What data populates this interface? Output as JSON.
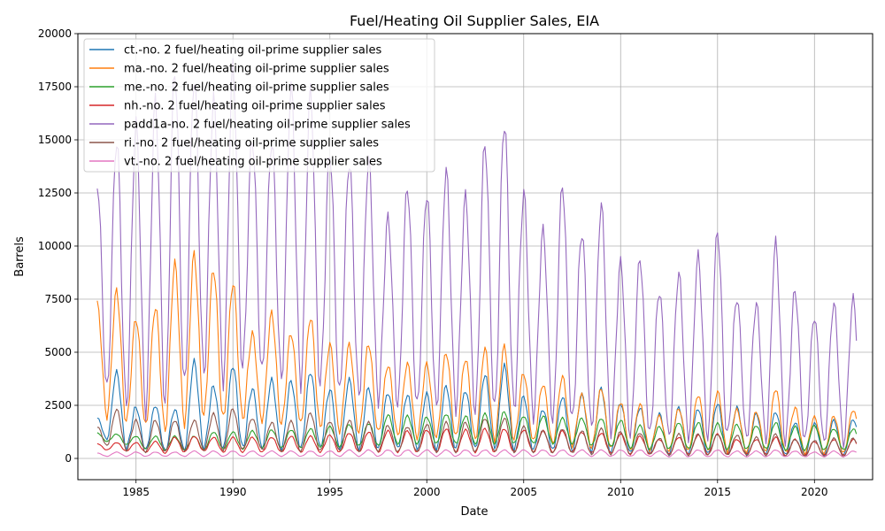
{
  "chart_data": {
    "type": "line",
    "title": "Fuel/Heating Oil Supplier Sales, EIA",
    "xlabel": "Date",
    "ylabel": "Barrels",
    "xlim": [
      1982.0,
      2023.0
    ],
    "ylim": [
      -1000,
      20000
    ],
    "grid": true,
    "legend_position": "top-left",
    "x_ticks": [
      1985,
      1990,
      1995,
      2000,
      2005,
      2010,
      2015,
      2020
    ],
    "y_ticks": [
      0,
      2500,
      5000,
      7500,
      10000,
      12500,
      15000,
      17500,
      20000
    ],
    "x_tick_labels": [
      "1985",
      "1990",
      "1995",
      "2000",
      "2005",
      "2010",
      "2015",
      "2020"
    ],
    "y_tick_labels": [
      "0",
      "2500",
      "5000",
      "7500",
      "10000",
      "12500",
      "15000",
      "17500",
      "20000"
    ],
    "x_years": [
      1983,
      1984,
      1985,
      1986,
      1987,
      1988,
      1989,
      1990,
      1991,
      1992,
      1993,
      1994,
      1995,
      1996,
      1997,
      1998,
      1999,
      2000,
      2001,
      2002,
      2003,
      2004,
      2005,
      2006,
      2007,
      2008,
      2009,
      2010,
      2011,
      2012,
      2013,
      2014,
      2015,
      2016,
      2017,
      2018,
      2019,
      2020,
      2021,
      2022
    ],
    "series": [
      {
        "name": "ct.-no. 2 fuel/heating oil-prime supplier sales",
        "color": "#1f77b4",
        "winter_peaks": [
          1900,
          4050,
          2400,
          2500,
          2300,
          4550,
          3400,
          4400,
          3300,
          3700,
          3650,
          4100,
          3250,
          3700,
          3300,
          3100,
          3000,
          3050,
          3400,
          3200,
          3950,
          4350,
          2900,
          2300,
          2900,
          3000,
          3300,
          2600,
          2400,
          2100,
          2400,
          2350,
          2600,
          2400,
          2100,
          2200,
          1700,
          1650,
          1800,
          1850
        ],
        "summer_lows": [
          900,
          500,
          400,
          350,
          400,
          500,
          450,
          500,
          500,
          450,
          450,
          500,
          450,
          450,
          450,
          450,
          450,
          450,
          450,
          450,
          500,
          450,
          400,
          400,
          350,
          350,
          250,
          250,
          250,
          200,
          200,
          200,
          200,
          200,
          200,
          150,
          150,
          150,
          150,
          150
        ]
      },
      {
        "name": "ma.-no. 2 fuel/heating oil-prime supplier sales",
        "color": "#ff7f0e",
        "winter_peaks": [
          7250,
          7900,
          6600,
          7150,
          9150,
          9600,
          8950,
          8300,
          5900,
          6850,
          5900,
          6650,
          5350,
          5350,
          5400,
          4400,
          4450,
          4450,
          5000,
          4700,
          5150,
          5250,
          4000,
          3500,
          3850,
          3000,
          3300,
          2650,
          2550,
          2000,
          2350,
          3000,
          3150,
          2300,
          2200,
          3300,
          2400,
          1950,
          2000,
          2300
        ],
        "summer_lows": [
          2000,
          1700,
          1500,
          1300,
          1700,
          2000,
          1800,
          1900,
          1800,
          1600,
          1600,
          1500,
          1300,
          1200,
          1200,
          1100,
          1000,
          1000,
          1000,
          900,
          900,
          900,
          800,
          700,
          600,
          500,
          450,
          400,
          400,
          350,
          350,
          350,
          350,
          300,
          300,
          300,
          250,
          250,
          250,
          250
        ]
      },
      {
        "name": "me.-no. 2 fuel/heating oil-prime supplier sales",
        "color": "#2ca02c",
        "winter_peaks": [
          1200,
          1150,
          1050,
          1050,
          1050,
          1050,
          1250,
          1250,
          1300,
          1350,
          1350,
          1400,
          1500,
          1600,
          1650,
          2050,
          2000,
          1950,
          2100,
          2000,
          2100,
          2200,
          2000,
          2000,
          1900,
          1900,
          1900,
          1800,
          1550,
          1500,
          1700,
          1700,
          1650,
          1600,
          1550,
          1700,
          1500,
          1550,
          1400,
          1400
        ],
        "summer_lows": [
          800,
          650,
          450,
          400,
          400,
          400,
          450,
          450,
          500,
          500,
          500,
          550,
          550,
          600,
          600,
          700,
          700,
          700,
          700,
          700,
          700,
          700,
          700,
          700,
          700,
          600,
          550,
          500,
          450,
          450,
          450,
          450,
          450,
          450,
          450,
          400,
          400,
          400,
          400,
          400
        ]
      },
      {
        "name": "nh.-no. 2 fuel/heating oil-prime supplier sales",
        "color": "#d62728",
        "winter_peaks": [
          700,
          750,
          750,
          800,
          1000,
          1050,
          1000,
          1000,
          1000,
          1000,
          1050,
          1050,
          1100,
          1200,
          1250,
          1300,
          1300,
          1350,
          1400,
          1350,
          1400,
          1400,
          1350,
          1300,
          1300,
          1250,
          1200,
          1150,
          1050,
          900,
          1000,
          1100,
          1150,
          900,
          900,
          1000,
          900,
          800,
          900,
          900
        ],
        "summer_lows": [
          400,
          350,
          300,
          250,
          300,
          350,
          300,
          300,
          300,
          300,
          300,
          300,
          300,
          300,
          300,
          300,
          300,
          300,
          300,
          300,
          300,
          300,
          300,
          300,
          300,
          250,
          250,
          200,
          200,
          200,
          200,
          200,
          200,
          200,
          200,
          150,
          150,
          150,
          150,
          150
        ]
      },
      {
        "name": "padd1a-no. 2 fuel/heating oil-prime supplier sales",
        "color": "#9467bd",
        "winter_peaks": [
          13000,
          15000,
          15700,
          16800,
          18400,
          18000,
          16900,
          18400,
          15100,
          15000,
          17400,
          17200,
          14400,
          14000,
          14000,
          11300,
          12800,
          12500,
          13500,
          12300,
          14900,
          15900,
          12500,
          10700,
          12900,
          10700,
          11900,
          9200,
          9400,
          7900,
          8700,
          9500,
          10700,
          7600,
          7300,
          10100,
          7900,
          6700,
          7300,
          7500
        ],
        "summer_lows": [
          3200,
          2500,
          2300,
          2600,
          3300,
          4000,
          3700,
          4300,
          4000,
          3700,
          3600,
          3500,
          3000,
          2900,
          2800,
          2500,
          2400,
          2400,
          2400,
          2200,
          2200,
          2300,
          2000,
          1800,
          1700,
          1400,
          1300,
          1100,
          1100,
          1000,
          1000,
          1000,
          1000,
          900,
          900,
          800,
          800,
          700,
          700,
          700
        ]
      },
      {
        "name": "ri.-no. 2 fuel/heating oil-prime supplier sales",
        "color": "#8c564b",
        "winter_peaks": [
          1500,
          2300,
          1800,
          1800,
          1800,
          1800,
          2100,
          2350,
          1900,
          1700,
          1750,
          2150,
          1750,
          1800,
          1700,
          1550,
          1500,
          1600,
          1700,
          1700,
          1900,
          1900,
          1500,
          1300,
          1400,
          1300,
          1400,
          1250,
          1200,
          950,
          1150,
          1150,
          1150,
          1100,
          1000,
          1150,
          900,
          850,
          950,
          950
        ],
        "summer_lows": [
          600,
          400,
          300,
          300,
          350,
          400,
          400,
          400,
          400,
          350,
          350,
          350,
          350,
          350,
          350,
          300,
          300,
          300,
          300,
          300,
          300,
          300,
          300,
          250,
          250,
          200,
          200,
          200,
          200,
          150,
          150,
          150,
          150,
          150,
          150,
          100,
          100,
          100,
          100,
          100
        ]
      },
      {
        "name": "vt.-no. 2 fuel/heating oil-prime supplier sales",
        "color": "#e377c2",
        "winter_peaks": [
          250,
          300,
          300,
          300,
          300,
          350,
          350,
          350,
          350,
          350,
          350,
          350,
          350,
          400,
          400,
          400,
          400,
          400,
          400,
          400,
          400,
          400,
          400,
          400,
          400,
          400,
          400,
          400,
          400,
          350,
          400,
          400,
          400,
          350,
          350,
          400,
          350,
          300,
          350,
          350
        ],
        "summer_lows": [
          100,
          100,
          100,
          100,
          100,
          100,
          100,
          100,
          100,
          100,
          100,
          100,
          100,
          100,
          100,
          100,
          100,
          100,
          100,
          100,
          100,
          100,
          100,
          100,
          100,
          100,
          100,
          100,
          100,
          80,
          80,
          80,
          80,
          80,
          80,
          80,
          80,
          80,
          80,
          80
        ]
      }
    ]
  }
}
